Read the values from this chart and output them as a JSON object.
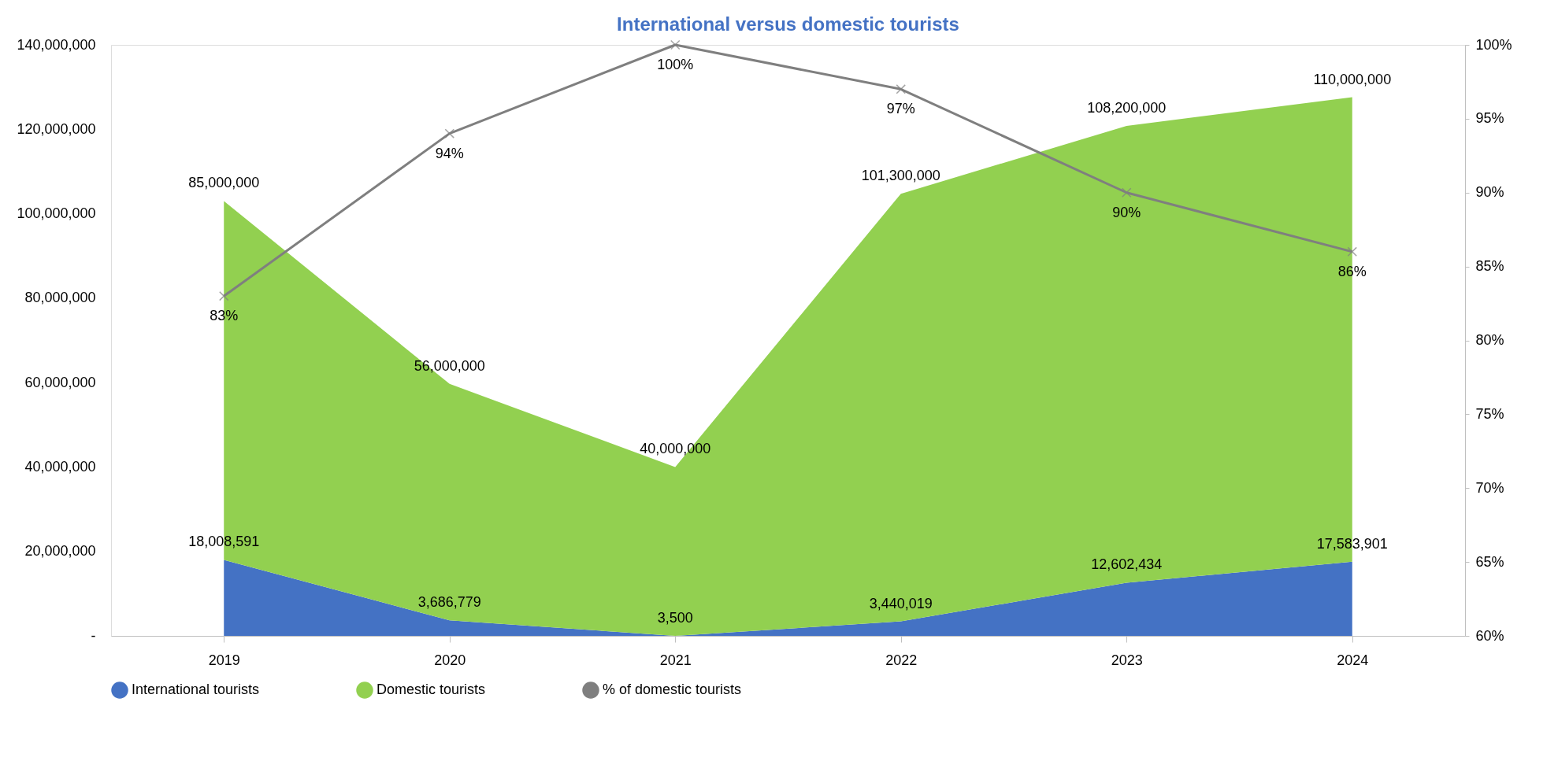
{
  "chart_data": {
    "type": "area",
    "title": "International versus domestic tourists",
    "categories": [
      "2019",
      "2020",
      "2021",
      "2022",
      "2023",
      "2024"
    ],
    "stacked": true,
    "series": [
      {
        "name": "International tourists",
        "color": "#4472c4",
        "values": [
          18008591,
          3686779,
          3500,
          3440019,
          12602434,
          17583901
        ],
        "value_labels": [
          "18,008,591",
          "3,686,779",
          "3,500",
          "3,440,019",
          "12,602,434",
          "17,583,901"
        ]
      },
      {
        "name": "Domestic tourists",
        "color": "#92d050",
        "values": [
          85000000,
          56000000,
          40000000,
          101300000,
          108200000,
          110000000
        ],
        "value_labels": [
          "85,000,000",
          "56,000,000",
          "40,000,000",
          "101,300,000",
          "108,200,000",
          "110,000,000"
        ]
      },
      {
        "name": "% of domestic tourists",
        "type": "line",
        "axis": "y2",
        "color": "#7f7f7f",
        "marker": "cross",
        "values": [
          83,
          94,
          100,
          97,
          90,
          86
        ],
        "value_labels": [
          "83%",
          "94%",
          "100%",
          "97%",
          "90%",
          "86%"
        ]
      }
    ],
    "ylim": [
      0,
      140000000
    ],
    "yticks": [
      {
        "value": 0,
        "label": "-"
      },
      {
        "value": 20000000,
        "label": "20,000,000"
      },
      {
        "value": 40000000,
        "label": "40,000,000"
      },
      {
        "value": 60000000,
        "label": "60,000,000"
      },
      {
        "value": 80000000,
        "label": "80,000,000"
      },
      {
        "value": 100000000,
        "label": "100,000,000"
      },
      {
        "value": 120000000,
        "label": "120,000,000"
      },
      {
        "value": 140000000,
        "label": "140,000,000"
      }
    ],
    "y2lim": [
      60,
      100
    ],
    "y2ticks": [
      {
        "value": 60,
        "label": "60%"
      },
      {
        "value": 65,
        "label": "65%"
      },
      {
        "value": 70,
        "label": "70%"
      },
      {
        "value": 75,
        "label": "75%"
      },
      {
        "value": 80,
        "label": "80%"
      },
      {
        "value": 85,
        "label": "85%"
      },
      {
        "value": 90,
        "label": "90%"
      },
      {
        "value": 95,
        "label": "95%"
      },
      {
        "value": 100,
        "label": "100%"
      }
    ],
    "grid": false,
    "legend": "bottom"
  }
}
